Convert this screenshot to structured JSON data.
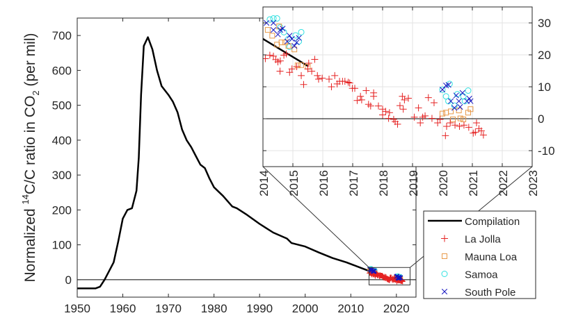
{
  "chart_data": {
    "type": "line",
    "ylabel_parts": {
      "pre": "Normalized ",
      "sup": "14",
      "mid": "C/C ratio in CO",
      "sub": "2",
      "post": " (per mil)"
    },
    "main": {
      "xlim": [
        1950,
        2024.3
      ],
      "ylim": [
        -50,
        750
      ],
      "xticks": [
        1950,
        1960,
        1970,
        1980,
        1990,
        2000,
        2010,
        2020
      ],
      "yticks": [
        0,
        100,
        200,
        300,
        400,
        500,
        600,
        700
      ],
      "grid": false
    },
    "inset": {
      "xlim": [
        2014,
        2023
      ],
      "ylim": [
        -15,
        35
      ],
      "xticks": [
        2014,
        2015,
        2016,
        2017,
        2018,
        2019,
        2020,
        2021,
        2022,
        2023
      ],
      "yticks": [
        -10,
        0,
        10,
        20,
        30
      ],
      "grid": true,
      "yaxis_location": "right"
    },
    "legend": {
      "placement": "lower-right"
    },
    "series": [
      {
        "name": "Compilation",
        "style": "line",
        "color": "#000000",
        "x": [
          1950,
          1954,
          1955,
          1956,
          1957,
          1958,
          1959,
          1960,
          1961,
          1962,
          1963,
          1963.5,
          1964,
          1964.6,
          1965.5,
          1966.5,
          1967.5,
          1968.5,
          1970,
          1971,
          1972,
          1973,
          1974,
          1975,
          1976,
          1977,
          1978,
          1979,
          1980,
          1982,
          1984,
          1985,
          1987,
          1990,
          1993,
          1996,
          1997,
          2000,
          2003,
          2006,
          2009,
          2012,
          2014,
          2015.5
        ],
        "y": [
          -25,
          -25,
          -20,
          0,
          25,
          50,
          110,
          175,
          200,
          205,
          255,
          350,
          530,
          670,
          695,
          660,
          600,
          555,
          530,
          510,
          480,
          430,
          400,
          380,
          355,
          330,
          320,
          290,
          265,
          240,
          210,
          205,
          188,
          160,
          135,
          118,
          105,
          95,
          78,
          62,
          50,
          35,
          25,
          16.5
        ]
      },
      {
        "name": "La Jolla",
        "style": "plus",
        "color": "#e52222",
        "x": [
          2014.08,
          2014.23,
          2014.35,
          2014.43,
          2014.5,
          2014.58,
          2014.57,
          2014.7,
          2014.78,
          2014.89,
          2014.97,
          2015.13,
          2015.28,
          2015.36,
          2015.5,
          2015.53,
          2015.63,
          2015.73,
          2015.82,
          2015.86,
          2015.98,
          2016.21,
          2016.29,
          2016.4,
          2016.48,
          2016.56,
          2016.66,
          2016.74,
          2016.85,
          2016.9,
          2016.99,
          2017.07,
          2017.15,
          2017.26,
          2017.3,
          2017.45,
          2017.53,
          2017.6,
          2017.7,
          2017.7,
          2017.86,
          2018.0,
          2018.0,
          2018.1,
          2018.2,
          2018.23,
          2018.37,
          2018.42,
          2018.5,
          2018.58,
          2018.66,
          2018.69,
          2018.73,
          2018.86,
          2019.06,
          2019.2,
          2019.26,
          2019.34,
          2019.42,
          2019.53,
          2019.65,
          2019.72,
          2019.84,
          2019.92,
          2020.1,
          2020.14,
          2020.26,
          2020.42,
          2020.57,
          2020.72,
          2020.88,
          2021.03,
          2021.1,
          2021.14,
          2021.22,
          2021.3,
          2021.37
        ],
        "y": [
          18.8,
          19.9,
          19.6,
          18.5,
          17.8,
          18.1,
          14.9,
          19.9,
          20.3,
          14.5,
          15.6,
          16.3,
          13.5,
          10.7,
          15.6,
          17.4,
          14.9,
          18.6,
          13.5,
          12.4,
          12.7,
          12.4,
          10.0,
          13.5,
          10.9,
          11.7,
          11.7,
          11.7,
          11.4,
          11.2,
          9.5,
          9.5,
          5.7,
          7.0,
          5.9,
          8.8,
          4.5,
          4.0,
          8.1,
          7.0,
          4.0,
          3.0,
          1.2,
          2.3,
          0.1,
          1.9,
          -0.2,
          -0.9,
          -1.7,
          4.1,
          7.0,
          3.0,
          5.9,
          6.4,
          0.5,
          3.4,
          -1.3,
          0.5,
          0.9,
          6.6,
          0.1,
          5.0,
          -1.3,
          -0.2,
          -5.3,
          -2.4,
          -1.3,
          -2.0,
          -2.4,
          -2.0,
          -2.7,
          -4.5,
          -4.2,
          -1.3,
          -3.1,
          -3.8,
          -5.1
        ]
      },
      {
        "name": "Mauna Loa",
        "style": "square",
        "color": "#e89a4a",
        "x": [
          2014.16,
          2014.31,
          2014.47,
          2014.54,
          2014.62,
          2014.74,
          2014.85,
          2015.05,
          2015.16,
          2015.28,
          2015.5,
          2020.0,
          2020.12,
          2020.28,
          2020.35,
          2020.55,
          2020.6,
          2020.7,
          2020.86,
          2020.94
        ],
        "y": [
          27.8,
          26.0,
          23.2,
          28.9,
          23.9,
          23.9,
          22.8,
          21.7,
          16.7,
          16.8,
          16.3,
          1.6,
          1.9,
          2.3,
          -0.2,
          2.6,
          0.1,
          -0.2,
          1.9,
          3.0
        ]
      },
      {
        "name": "Samoa",
        "style": "circle",
        "color": "#2fe0e0",
        "x": [
          2014.23,
          2014.35,
          2014.47,
          2014.58,
          2014.7,
          2014.85,
          2014.89,
          2015.09,
          2015.28,
          2015.2,
          2020.0,
          2020.24,
          2020.12,
          2020.2,
          2020.4,
          2020.5,
          2020.7,
          2020.86,
          2020.75
        ],
        "y": [
          31.1,
          31.4,
          31.4,
          28.6,
          27.1,
          25.0,
          22.5,
          26.1,
          27.1,
          24.2,
          9.1,
          10.9,
          7.0,
          5.5,
          4.1,
          7.7,
          7.0,
          8.8,
          5.5
        ]
      },
      {
        "name": "South Pole",
        "style": "x",
        "color": "#1414c0",
        "x": [
          2014.12,
          2014.35,
          2014.35,
          2014.5,
          2014.58,
          2014.66,
          2014.81,
          2014.89,
          2014.97,
          2015.05,
          2015.13,
          2015.2,
          2020.0,
          2020.12,
          2020.2,
          2020.28,
          2020.4,
          2020.46,
          2020.55,
          2020.59,
          2020.67,
          2020.82,
          2020.9,
          2020.94
        ],
        "y": [
          30.0,
          30.0,
          27.8,
          26.4,
          27.8,
          28.2,
          24.2,
          26.0,
          25.0,
          22.8,
          23.9,
          25.3,
          9.1,
          10.4,
          10.6,
          5.5,
          3.4,
          7.3,
          5.5,
          3.7,
          8.1,
          5.5,
          6.3,
          5.5
        ]
      }
    ]
  }
}
